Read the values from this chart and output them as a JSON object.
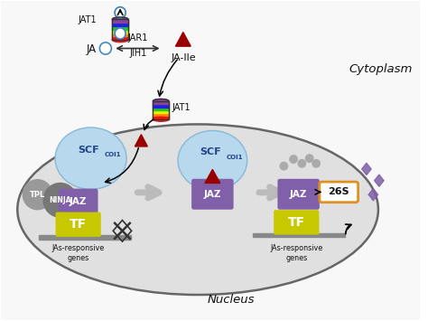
{
  "fig_width": 4.74,
  "fig_height": 3.55,
  "dpi": 100,
  "bg_color": "#ffffff",
  "outer_cell_edge": "#222222",
  "cytoplasm_label": "Cytoplasm",
  "nucleus_label": "Nucleus",
  "nucleus_bg": "#e0e0e0",
  "nucleus_edge": "#666666",
  "JA_label": "JA",
  "JAIle_label": "JA-Ile",
  "JAR1_label": "JAR1",
  "JIH1_label": "JIH1",
  "JAT1_top_label": "JAT1",
  "JAT1_mid_label": "JAT1",
  "SCF_label": "SCF",
  "COI1_sup": "COI1",
  "JAZ_label": "JAZ",
  "TF_label": "TF",
  "TPL_label": "TPL",
  "NINJA_label": "NINJA",
  "label_26S": "26S",
  "genes_label": "JAs-responsive\ngenes",
  "purple_color": "#8060a8",
  "yellow_color": "#c8c800",
  "gray_color": "#888888",
  "light_blue": "#b8d8ee",
  "red_triangle": "#990000",
  "orange_box": "#e09020",
  "rainbow_colors": [
    "#ee1111",
    "#ff8800",
    "#eeee00",
    "#22cc22",
    "#2222dd",
    "#884499"
  ],
  "arrow_gray": "#bbbbbb",
  "text_color": "#111111",
  "dna_gray": "#888888",
  "white": "#ffffff"
}
